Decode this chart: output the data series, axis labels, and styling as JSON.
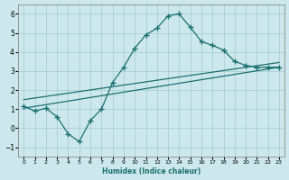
{
  "title": "",
  "xlabel": "Humidex (Indice chaleur)",
  "ylabel": "",
  "bg_color": "#cce8ec",
  "grid_color": "#aacdd4",
  "line_color": "#1a7070",
  "xlim": [
    -0.5,
    23.5
  ],
  "ylim": [
    -1.5,
    6.5
  ],
  "xticks": [
    0,
    1,
    2,
    3,
    4,
    5,
    6,
    7,
    8,
    9,
    10,
    11,
    12,
    13,
    14,
    15,
    16,
    17,
    18,
    19,
    20,
    21,
    22,
    23
  ],
  "yticks": [
    -1,
    0,
    1,
    2,
    3,
    4,
    5,
    6
  ],
  "line1_x": [
    0,
    1,
    2,
    3,
    4,
    5,
    6,
    7,
    8,
    9,
    10,
    11,
    12,
    13,
    14,
    15,
    16,
    17,
    18,
    19,
    20,
    21,
    22,
    23
  ],
  "line1_y": [
    1.15,
    0.9,
    1.05,
    0.6,
    -0.3,
    -0.7,
    0.4,
    1.0,
    2.4,
    3.2,
    4.2,
    4.9,
    5.25,
    5.9,
    6.0,
    5.3,
    4.55,
    4.35,
    4.1,
    3.5,
    3.3,
    3.2,
    3.2,
    3.2
  ],
  "line2_x": [
    0,
    23
  ],
  "line2_y": [
    1.5,
    3.45
  ],
  "line3_x": [
    0,
    23
  ],
  "line3_y": [
    1.05,
    3.2
  ]
}
